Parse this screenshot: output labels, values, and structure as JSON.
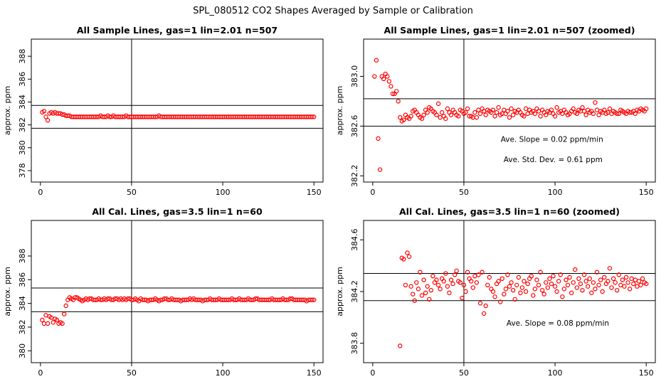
{
  "figure_title": "SPL_080512  CO2 Shapes Averaged by Sample or Calibration",
  "colors": {
    "points": "#ff0000",
    "axes": "#000000",
    "background": "#ffffff"
  },
  "chart_data": [
    {
      "type": "scatter",
      "title": "All Sample Lines, gas=1 lin=2.01 n=507",
      "xlabel": "",
      "ylabel": "approx. ppm",
      "xlim": [
        -5,
        155
      ],
      "ylim": [
        377,
        389.5
      ],
      "xticks": [
        0,
        50,
        100,
        150
      ],
      "yticks": [
        378,
        380,
        382,
        384,
        386,
        388
      ],
      "hlines": [
        381.7,
        383.7
      ],
      "vline": 50,
      "series": [
        {
          "name": "segment-1",
          "x": [
            1,
            2,
            3,
            4
          ],
          "y": [
            383.1,
            383.2,
            382.7,
            382.4
          ]
        },
        {
          "name": "segment-2",
          "x_start": 5,
          "x_end": 150,
          "values": [
            383.0,
            383.1,
            383.0,
            383.1,
            383.0,
            383.0,
            383.0,
            382.9,
            382.9,
            382.8,
            382.8,
            382.8,
            382.7,
            382.7,
            382.7,
            382.7,
            382.7,
            382.7,
            382.7,
            382.7,
            382.7,
            382.7,
            382.7,
            382.7,
            382.7,
            382.7,
            382.7,
            382.7,
            382.8,
            382.7,
            382.7,
            382.7,
            382.8,
            382.7,
            382.7,
            382.8,
            382.7,
            382.7,
            382.7,
            382.7,
            382.7,
            382.7,
            382.8,
            382.7,
            382.7,
            382.7,
            382.7,
            382.7,
            382.7,
            382.7,
            382.7,
            382.7,
            382.7,
            382.7,
            382.7,
            382.7,
            382.7,
            382.7,
            382.7,
            382.7,
            382.8,
            382.7,
            382.7,
            382.7,
            382.7,
            382.7,
            382.7,
            382.7,
            382.7,
            382.7,
            382.7,
            382.7,
            382.7,
            382.7,
            382.7,
            382.7,
            382.7,
            382.7,
            382.7,
            382.7,
            382.7,
            382.7,
            382.7,
            382.7,
            382.7,
            382.7,
            382.7,
            382.7,
            382.7,
            382.7,
            382.7,
            382.7,
            382.7,
            382.7,
            382.7,
            382.7,
            382.7,
            382.7,
            382.7,
            382.7,
            382.7,
            382.7,
            382.7,
            382.7,
            382.7,
            382.7,
            382.7,
            382.7,
            382.7,
            382.7,
            382.7,
            382.7,
            382.7,
            382.7,
            382.7,
            382.7,
            382.7,
            382.7,
            382.7,
            382.7,
            382.7,
            382.7,
            382.7,
            382.7,
            382.7,
            382.7,
            382.7,
            382.7,
            382.7,
            382.7,
            382.7,
            382.7,
            382.7,
            382.7,
            382.7,
            382.7,
            382.7,
            382.7,
            382.7,
            382.7,
            382.7,
            382.7,
            382.7,
            382.7,
            382.7,
            382.7
          ]
        }
      ],
      "annotations": []
    },
    {
      "type": "scatter",
      "title": "All Sample Lines, gas=1 lin=2.01 n=507 (zoomed)",
      "xlabel": "",
      "ylabel": "approx. ppm",
      "xlim": [
        -5,
        155
      ],
      "ylim": [
        382.15,
        383.3
      ],
      "xticks": [
        0,
        50,
        100,
        150
      ],
      "yticks": [
        382.2,
        382.6,
        383.0
      ],
      "ytick_labels": [
        "382.2",
        "382.6",
        "383.0"
      ],
      "hlines": [
        382.6,
        382.82
      ],
      "vline": 50,
      "series": [
        {
          "name": "segment-1",
          "x": [
            1,
            2,
            3,
            4
          ],
          "y": [
            383.0,
            383.13,
            382.5,
            382.25
          ]
        },
        {
          "name": "segment-2",
          "x_start": 5,
          "x_end": 150,
          "values": [
            383.0,
            382.98,
            383.02,
            383.0,
            382.96,
            382.92,
            382.86,
            382.86,
            382.88,
            382.8,
            382.67,
            382.64,
            382.65,
            382.69,
            382.67,
            382.66,
            382.68,
            382.72,
            382.73,
            382.71,
            382.69,
            382.67,
            382.66,
            382.69,
            382.73,
            382.71,
            382.75,
            382.74,
            382.72,
            382.71,
            382.69,
            382.78,
            382.67,
            382.71,
            382.68,
            382.66,
            382.74,
            382.71,
            382.69,
            382.73,
            382.71,
            382.69,
            382.68,
            382.73,
            382.72,
            382.7,
            382.71,
            382.74,
            382.68,
            382.68,
            382.67,
            382.71,
            382.67,
            382.73,
            382.7,
            382.74,
            382.72,
            382.69,
            382.73,
            382.72,
            382.71,
            382.73,
            382.68,
            382.71,
            382.75,
            382.69,
            382.7,
            382.73,
            382.7,
            382.72,
            382.67,
            382.74,
            382.69,
            382.72,
            382.71,
            382.73,
            382.71,
            382.69,
            382.68,
            382.74,
            382.7,
            382.73,
            382.71,
            382.72,
            382.7,
            382.74,
            382.72,
            382.68,
            382.73,
            382.71,
            382.69,
            382.72,
            382.71,
            382.73,
            382.7,
            382.68,
            382.75,
            382.71,
            382.72,
            382.7,
            382.73,
            382.71,
            382.69,
            382.7,
            382.72,
            382.74,
            382.71,
            382.7,
            382.73,
            382.72,
            382.75,
            382.72,
            382.69,
            382.73,
            382.71,
            382.72,
            382.7,
            382.79,
            382.73,
            382.69,
            382.72,
            382.71,
            382.73,
            382.7,
            382.71,
            382.74,
            382.7,
            382.72,
            382.71,
            382.7,
            382.7,
            382.73,
            382.72,
            382.71,
            382.7,
            382.72,
            382.71,
            382.71,
            382.72,
            382.7,
            382.73,
            382.72,
            382.74,
            382.73,
            382.72,
            382.74
          ]
        }
      ],
      "annotations": [
        "Ave. Slope =  0.02  ppm/min",
        "Ave. Std. Dev. =  0.61  ppm"
      ]
    },
    {
      "type": "scatter",
      "title": "All Cal. Lines, gas=3.5 lin=1 n=60",
      "xlabel": "",
      "ylabel": "approx. ppm",
      "xlim": [
        -5,
        155
      ],
      "ylim": [
        379,
        391
      ],
      "xticks": [
        0,
        50,
        100,
        150
      ],
      "yticks": [
        380,
        382,
        384,
        386,
        388
      ],
      "ytick_labels": [
        "380",
        "382",
        "384",
        "386",
        "388"
      ],
      "hlines": [
        383.3,
        385.3
      ],
      "vline": 50,
      "series": [
        {
          "name": "segment-1",
          "x_start": 1,
          "x_end": 12,
          "values": [
            382.6,
            382.3,
            383.0,
            382.3,
            382.9,
            382.8,
            382.4,
            382.7,
            382.6,
            382.3,
            382.4,
            382.3
          ]
        },
        {
          "name": "segment-2",
          "x_start": 13,
          "x_end": 150,
          "values": [
            383.1,
            383.8,
            384.3,
            384.5,
            384.4,
            384.3,
            384.5,
            384.5,
            384.4,
            384.3,
            384.2,
            384.3,
            384.4,
            384.3,
            384.4,
            384.4,
            384.3,
            384.3,
            384.3,
            384.4,
            384.3,
            384.3,
            384.4,
            384.3,
            384.4,
            384.4,
            384.3,
            384.3,
            384.4,
            384.4,
            384.3,
            384.4,
            384.3,
            384.4,
            384.3,
            384.4,
            384.4,
            384.3,
            384.3,
            384.4,
            384.3,
            384.2,
            384.4,
            384.3,
            384.3,
            384.3,
            384.2,
            384.3,
            384.3,
            384.3,
            384.4,
            384.3,
            384.2,
            384.3,
            384.3,
            384.4,
            384.4,
            384.3,
            384.3,
            384.4,
            384.3,
            384.3,
            384.3,
            384.3,
            384.2,
            384.3,
            384.3,
            384.3,
            384.3,
            384.4,
            384.3,
            384.4,
            384.3,
            384.3,
            384.3,
            384.3,
            384.2,
            384.3,
            384.3,
            384.3,
            384.4,
            384.3,
            384.3,
            384.3,
            384.3,
            384.4,
            384.3,
            384.3,
            384.3,
            384.3,
            384.3,
            384.3,
            384.4,
            384.3,
            384.3,
            384.3,
            384.4,
            384.3,
            384.3,
            384.3,
            384.3,
            384.4,
            384.3,
            384.3,
            384.3,
            384.4,
            384.4,
            384.3,
            384.3,
            384.3,
            384.3,
            384.3,
            384.3,
            384.3,
            384.4,
            384.3,
            384.3,
            384.3,
            384.3,
            384.3,
            384.4,
            384.3,
            384.3,
            384.3,
            384.4,
            384.4,
            384.3,
            384.3,
            384.3,
            384.3,
            384.3,
            384.3,
            384.3,
            384.2,
            384.3,
            384.3,
            384.3,
            384.3
          ]
        }
      ],
      "annotations": []
    },
    {
      "type": "scatter",
      "title": "All Cal. Lines, gas=3.5 lin=1 n=60 (zoomed)",
      "xlabel": "",
      "ylabel": "approx. ppm",
      "xlim": [
        -5,
        155
      ],
      "ylim": [
        383.65,
        384.75
      ],
      "xticks": [
        0,
        50,
        100,
        150
      ],
      "yticks": [
        383.8,
        384.2,
        384.6
      ],
      "ytick_labels": [
        "383.8",
        "384.2",
        "384.6"
      ],
      "hlines": [
        384.13,
        384.34
      ],
      "vline": 50,
      "series": [
        {
          "name": "segment-1",
          "x": [
            15,
            16,
            17,
            18,
            19,
            20,
            21,
            22,
            23,
            24,
            25,
            26,
            27,
            28,
            29,
            30
          ],
          "y": [
            383.78,
            384.46,
            384.45,
            384.25,
            384.5,
            384.47,
            384.24,
            384.18,
            384.13,
            384.27,
            384.22,
            384.35,
            384.17,
            384.29,
            384.19,
            384.24
          ]
        },
        {
          "name": "segment-2",
          "x_start": 31,
          "x_end": 150,
          "values": [
            384.14,
            384.21,
            384.32,
            384.27,
            384.29,
            384.25,
            384.22,
            384.3,
            384.28,
            384.34,
            384.24,
            384.19,
            384.29,
            384.26,
            384.33,
            384.36,
            384.28,
            384.27,
            384.15,
            384.25,
            384.2,
            384.35,
            384.3,
            384.28,
            384.23,
            384.32,
            384.27,
            384.33,
            384.11,
            384.35,
            384.03,
            384.09,
            384.25,
            384.31,
            384.22,
            384.2,
            384.16,
            384.26,
            384.28,
            384.12,
            384.3,
            384.18,
            384.22,
            384.33,
            384.24,
            384.27,
            384.21,
            384.14,
            384.25,
            384.31,
            384.19,
            384.23,
            384.28,
            384.2,
            384.26,
            384.3,
            384.32,
            384.17,
            384.22,
            384.29,
            384.25,
            384.35,
            384.21,
            384.18,
            384.27,
            384.23,
            384.3,
            384.26,
            384.32,
            384.24,
            384.2,
            384.28,
            384.33,
            384.16,
            384.22,
            384.29,
            384.25,
            384.31,
            384.19,
            384.27,
            384.37,
            384.23,
            384.3,
            384.26,
            384.21,
            384.33,
            384.28,
            384.24,
            384.3,
            384.19,
            384.27,
            384.22,
            384.35,
            384.25,
            384.29,
            384.2,
            384.31,
            384.26,
            384.28,
            384.38,
            384.23,
            384.3,
            384.27,
            384.21,
            384.33,
            384.25,
            384.29,
            384.24,
            384.31,
            384.27,
            384.22,
            384.3,
            384.26,
            384.29,
            384.24,
            384.28,
            384.25,
            384.3,
            384.27,
            384.26
          ]
        }
      ],
      "annotations": [
        "Ave. Slope =  0.08  ppm/min"
      ]
    }
  ]
}
